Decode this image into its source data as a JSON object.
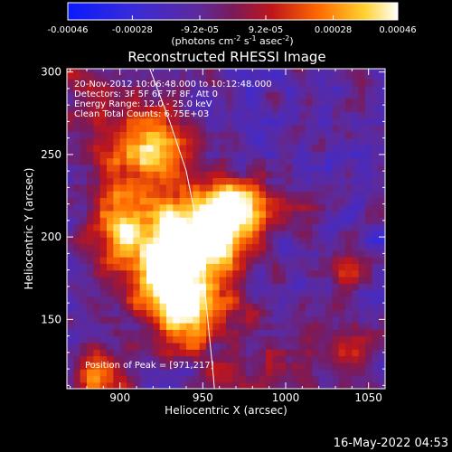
{
  "chart_data": {
    "type": "heatmap",
    "title": "Reconstructed RHESSI Image",
    "xlabel": "Heliocentric X (arcsec)",
    "ylabel": "Heliocentric Y (arcsec)",
    "xlim": [
      868,
      1060
    ],
    "ylim": [
      108,
      302
    ],
    "x_ticks": [
      "900",
      "950",
      "1000",
      "1050"
    ],
    "x_tick_values": [
      900,
      950,
      1000,
      1050
    ],
    "y_ticks": [
      "150",
      "200",
      "250",
      "300"
    ],
    "y_tick_values": [
      150,
      200,
      250,
      300
    ],
    "colorbar": {
      "ticks": [
        "-0.00046",
        "-0.00028",
        "-9.2e-05",
        "9.2e-05",
        "0.00028",
        "0.00046"
      ],
      "tick_values": [
        -0.00046,
        -0.00028,
        -9.2e-05,
        9.2e-05,
        0.00028,
        0.00046
      ],
      "range": [
        -0.00046,
        0.00046
      ],
      "units_prefix": "(photons cm",
      "units_exp1": "-2",
      "units_mid1": " s",
      "units_exp2": "-1",
      "units_mid2": " asec",
      "units_exp3": "-2",
      "units_suffix": ")"
    },
    "annotations": {
      "time_range": "20-Nov-2012 10:06:48.000 to 10:12:48.000",
      "detectors": "Detectors: 3F 5F 6F 7F 8F, Att 0",
      "energy_range": "Energy Range: 12.0 - 25.0 keV",
      "method": "Clean     Total Counts: 6.75E+03",
      "peak": "Position of Peak = [971,217]"
    },
    "peak_position": [
      971,
      217
    ],
    "limb_curve": [
      [
        918,
        302
      ],
      [
        930,
        270
      ],
      [
        940,
        240
      ],
      [
        946,
        210
      ],
      [
        950,
        180
      ],
      [
        953,
        150
      ],
      [
        956,
        120
      ],
      [
        957,
        108
      ]
    ],
    "bright_sources": [
      {
        "x": 970,
        "y": 217,
        "sigma": 13,
        "amp": 1.0
      },
      {
        "x": 945,
        "y": 197,
        "sigma": 17,
        "amp": 0.95
      },
      {
        "x": 925,
        "y": 175,
        "sigma": 16,
        "amp": 0.75
      },
      {
        "x": 920,
        "y": 255,
        "sigma": 16,
        "amp": 0.6
      },
      {
        "x": 940,
        "y": 150,
        "sigma": 12,
        "amp": 0.6
      },
      {
        "x": 900,
        "y": 205,
        "sigma": 14,
        "amp": 0.55
      },
      {
        "x": 888,
        "y": 115,
        "sigma": 12,
        "amp": 0.55
      },
      {
        "x": 1040,
        "y": 180,
        "sigma": 10,
        "amp": 0.35
      },
      {
        "x": 1040,
        "y": 135,
        "sigma": 11,
        "amp": 0.4
      },
      {
        "x": 1005,
        "y": 218,
        "sigma": 12,
        "amp": 0.3
      }
    ]
  },
  "footer": {
    "date": "16-May-2022 04:53"
  }
}
